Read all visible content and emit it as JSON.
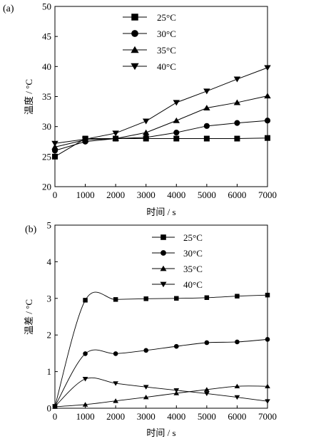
{
  "chart_data": [
    {
      "type": "line",
      "panel_label": "(a)",
      "xlabel": "时间 / s",
      "ylabel": "温度 / °C",
      "xlim": [
        0,
        7000
      ],
      "ylim": [
        20,
        50
      ],
      "xticks": [
        0,
        1000,
        2000,
        3000,
        4000,
        5000,
        6000,
        7000
      ],
      "yticks": [
        20,
        25,
        30,
        35,
        40,
        45,
        50
      ],
      "legend_position": "top-center",
      "grid": false,
      "series": [
        {
          "name": "25°C",
          "marker": "square",
          "x": [
            0,
            1000,
            2000,
            3000,
            4000,
            5000,
            6000,
            7000
          ],
          "y": [
            25.0,
            28.0,
            28.0,
            28.0,
            28.0,
            28.0,
            28.0,
            28.1
          ]
        },
        {
          "name": "30°C",
          "marker": "circle",
          "x": [
            0,
            1000,
            2000,
            3000,
            4000,
            5000,
            6000,
            7000
          ],
          "y": [
            26.0,
            27.5,
            28.0,
            28.2,
            29.0,
            30.1,
            30.6,
            31.0
          ]
        },
        {
          "name": "35°C",
          "marker": "triangle-up",
          "x": [
            0,
            1000,
            2000,
            3000,
            4000,
            5000,
            6000,
            7000
          ],
          "y": [
            26.6,
            27.8,
            28.0,
            29.0,
            31.0,
            33.1,
            34.0,
            35.1
          ]
        },
        {
          "name": "40°C",
          "marker": "triangle-down",
          "x": [
            0,
            1000,
            2000,
            3000,
            4000,
            5000,
            6000,
            7000
          ],
          "y": [
            27.2,
            27.9,
            28.9,
            30.9,
            34.0,
            35.9,
            37.9,
            39.8
          ]
        }
      ]
    },
    {
      "type": "line",
      "panel_label": "(b)",
      "xlabel": "时间 / s",
      "ylabel": "温差 / °C",
      "xlim": [
        0,
        7000
      ],
      "ylim": [
        0,
        5
      ],
      "xticks": [
        0,
        1000,
        2000,
        3000,
        4000,
        5000,
        6000,
        7000
      ],
      "yticks": [
        0,
        1,
        2,
        3,
        4,
        5
      ],
      "legend_position": "top-right",
      "grid": false,
      "series": [
        {
          "name": "25°C",
          "marker": "square",
          "x": [
            0,
            1000,
            2000,
            3000,
            4000,
            5000,
            6000,
            7000
          ],
          "y": [
            0.05,
            2.95,
            2.97,
            2.99,
            3.0,
            3.02,
            3.06,
            3.09
          ]
        },
        {
          "name": "30°C",
          "marker": "circle",
          "x": [
            0,
            1000,
            2000,
            3000,
            4000,
            5000,
            6000,
            7000
          ],
          "y": [
            0.05,
            1.49,
            1.49,
            1.58,
            1.69,
            1.79,
            1.81,
            1.88
          ]
        },
        {
          "name": "35°C",
          "marker": "triangle-up",
          "x": [
            0,
            1000,
            2000,
            3000,
            4000,
            5000,
            6000,
            7000
          ],
          "y": [
            0.04,
            0.1,
            0.2,
            0.3,
            0.41,
            0.51,
            0.6,
            0.6
          ]
        },
        {
          "name": "40°C",
          "marker": "triangle-down",
          "x": [
            0,
            1000,
            2000,
            3000,
            4000,
            5000,
            6000,
            7000
          ],
          "y": [
            0.05,
            0.8,
            0.68,
            0.58,
            0.49,
            0.4,
            0.3,
            0.19
          ]
        }
      ]
    }
  ]
}
